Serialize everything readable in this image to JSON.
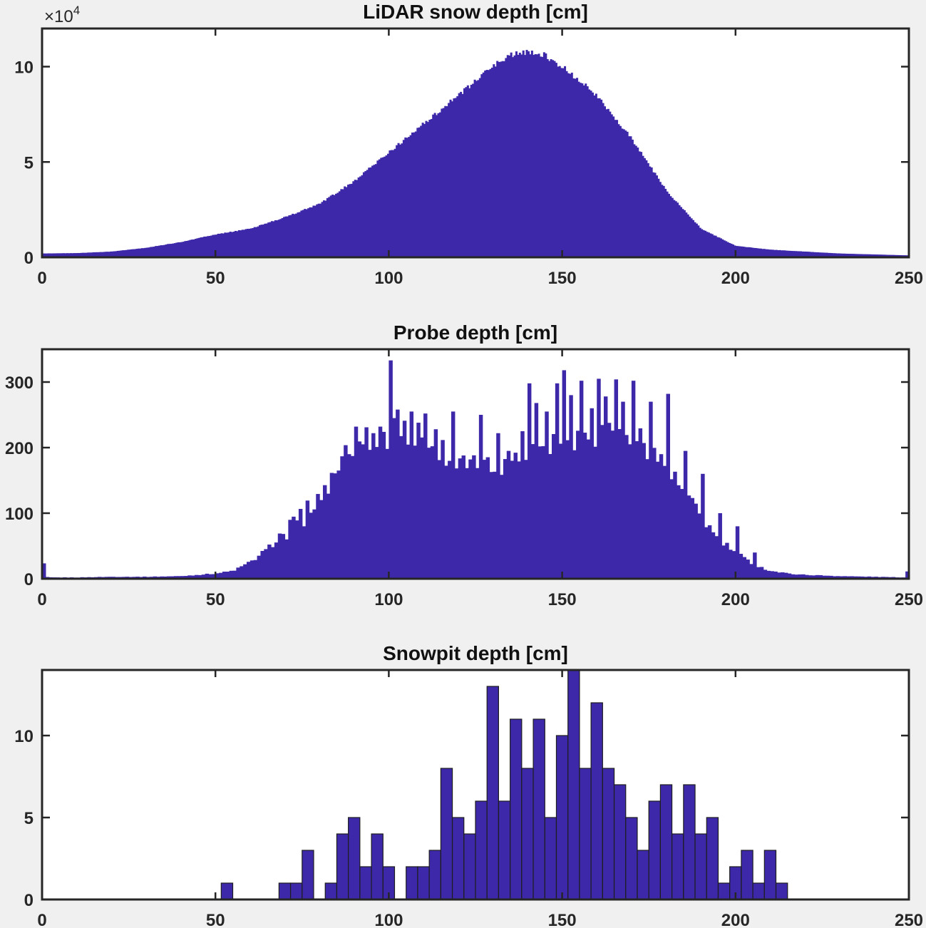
{
  "colors": {
    "bar_fill": "#3c28a8",
    "bar_edge": "#1e1e1e",
    "axis": "#262626",
    "figure_bg": "#f0f0f0",
    "axes_bg": "#ffffff"
  },
  "chart_data": [
    {
      "type": "bar",
      "title": "LiDAR snow depth [cm]",
      "xlabel": "",
      "ylabel": "",
      "xlim": [
        0,
        250
      ],
      "ylim": [
        0,
        120000
      ],
      "xticks": [
        0,
        50,
        100,
        150,
        200,
        250
      ],
      "yticks": [
        0,
        50000,
        100000
      ],
      "ytick_labels": [
        "0",
        "5",
        "10"
      ],
      "y_exponent_label": "×10",
      "y_exponent_power": "4",
      "bin_width": 0.5,
      "bar_edges": false,
      "grid": false,
      "x": [
        0,
        10,
        20,
        30,
        40,
        50,
        60,
        70,
        80,
        90,
        100,
        110,
        120,
        130,
        135,
        140,
        145,
        150,
        160,
        170,
        180,
        190,
        200,
        210,
        220,
        230,
        240,
        250
      ],
      "values": [
        2000,
        2200,
        3000,
        5000,
        8000,
        12000,
        15000,
        21000,
        28000,
        40000,
        55000,
        70000,
        85000,
        100000,
        106000,
        108000,
        106000,
        100000,
        85000,
        62000,
        35000,
        15000,
        6000,
        4000,
        3000,
        2000,
        1500,
        1000
      ]
    },
    {
      "type": "bar",
      "title": "Probe depth [cm]",
      "xlabel": "",
      "ylabel": "",
      "xlim": [
        0,
        250
      ],
      "ylim": [
        0,
        350
      ],
      "xticks": [
        0,
        50,
        100,
        150,
        200,
        250
      ],
      "yticks": [
        0,
        100,
        200,
        300
      ],
      "ytick_labels": [
        "0",
        "100",
        "200",
        "300"
      ],
      "bin_width": 1,
      "bar_edges": false,
      "grid": false,
      "x": [
        0,
        1,
        2,
        10,
        20,
        30,
        40,
        45,
        50,
        55,
        60,
        65,
        70,
        75,
        80,
        85,
        90,
        95,
        100,
        105,
        110,
        115,
        120,
        125,
        130,
        135,
        140,
        145,
        150,
        155,
        160,
        165,
        170,
        175,
        180,
        185,
        190,
        195,
        200,
        205,
        210,
        215,
        220,
        230,
        240,
        249,
        250
      ],
      "values": [
        40,
        3,
        2,
        2,
        3,
        3,
        4,
        6,
        8,
        12,
        25,
        45,
        75,
        100,
        125,
        165,
        205,
        215,
        235,
        225,
        215,
        200,
        170,
        170,
        170,
        185,
        205,
        210,
        215,
        215,
        220,
        230,
        225,
        200,
        170,
        130,
        95,
        60,
        40,
        22,
        12,
        8,
        6,
        4,
        3,
        2,
        20
      ],
      "spikes": [
        [
          70,
          60
        ],
        [
          75,
          80
        ],
        [
          80,
          120
        ],
        [
          85,
          165
        ],
        [
          88,
          190
        ],
        [
          90,
          232
        ],
        [
          92,
          205
        ],
        [
          95,
          222
        ],
        [
          97,
          232
        ],
        [
          99,
          198
        ],
        [
          100,
          333
        ],
        [
          102,
          258
        ],
        [
          104,
          241
        ],
        [
          106,
          255
        ],
        [
          108,
          238
        ],
        [
          110,
          252
        ],
        [
          113,
          228
        ],
        [
          118,
          255
        ],
        [
          121,
          188
        ],
        [
          126,
          250
        ],
        [
          131,
          222
        ],
        [
          134,
          195
        ],
        [
          138,
          225
        ],
        [
          140,
          298
        ],
        [
          142,
          268
        ],
        [
          145,
          255
        ],
        [
          148,
          298
        ],
        [
          150,
          318
        ],
        [
          152,
          280
        ],
        [
          155,
          302
        ],
        [
          158,
          260
        ],
        [
          160,
          305
        ],
        [
          162,
          278
        ],
        [
          165,
          304
        ],
        [
          167,
          270
        ],
        [
          170,
          302
        ],
        [
          175,
          270
        ],
        [
          180,
          282
        ],
        [
          185,
          195
        ],
        [
          190,
          160
        ],
        [
          195,
          100
        ],
        [
          200,
          80
        ],
        [
          205,
          40
        ]
      ]
    },
    {
      "type": "bar",
      "title": "Snowpit depth [cm]",
      "xlabel": "",
      "ylabel": "",
      "xlim": [
        0,
        250
      ],
      "ylim": [
        0,
        14
      ],
      "xticks": [
        0,
        50,
        100,
        150,
        200,
        250
      ],
      "yticks": [
        0,
        5,
        10
      ],
      "ytick_labels": [
        "0",
        "5",
        "10"
      ],
      "bin_width": 3.33,
      "bar_edges": true,
      "grid": false,
      "x": [
        51.67,
        55,
        58.33,
        61.67,
        65,
        68.33,
        71.67,
        75,
        78.33,
        81.67,
        85,
        88.33,
        91.67,
        95,
        98.33,
        101.67,
        105,
        108.33,
        111.67,
        115,
        118.33,
        121.67,
        125,
        128.33,
        131.67,
        135,
        138.33,
        141.67,
        145,
        148.33,
        151.67,
        155,
        158.33,
        161.67,
        165,
        168.33,
        171.67,
        175,
        178.33,
        181.67,
        185,
        188.33,
        191.67,
        195,
        198.33,
        201.67,
        205,
        208.33,
        211.67
      ],
      "values": [
        1,
        0,
        0,
        0,
        0,
        1,
        1,
        3,
        0,
        1,
        4,
        5,
        2,
        4,
        2,
        0,
        2,
        2,
        3,
        8,
        5,
        4,
        6,
        13,
        6,
        11,
        8,
        11,
        5,
        10,
        14,
        8,
        12,
        8,
        7,
        5,
        3,
        6,
        7,
        4,
        7,
        4,
        5,
        1,
        2,
        3,
        1,
        3,
        1
      ]
    }
  ]
}
